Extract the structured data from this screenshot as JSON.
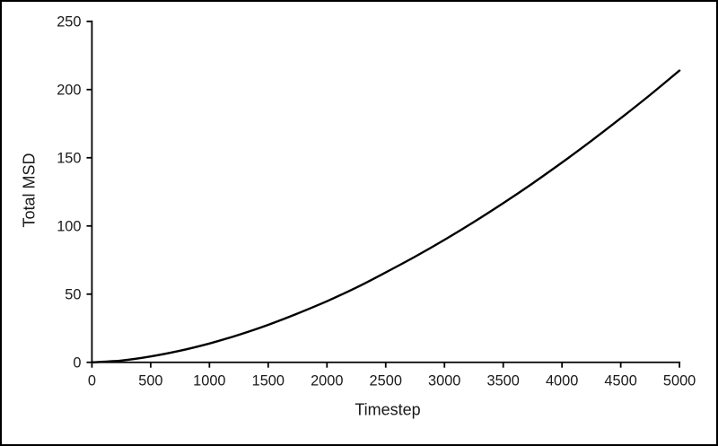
{
  "window": {
    "background": "#ffffff",
    "border_color": "#000000"
  },
  "chart_data": {
    "type": "line",
    "title": "",
    "xlabel": "Timestep",
    "ylabel": "Total MSD",
    "xlim": [
      0,
      5000
    ],
    "ylim": [
      0,
      250
    ],
    "x_ticks": [
      0,
      500,
      1000,
      1500,
      2000,
      2500,
      3000,
      3500,
      4000,
      4500,
      5000
    ],
    "y_ticks": [
      0,
      50,
      100,
      150,
      200,
      250
    ],
    "grid": false,
    "legend": "none",
    "line_color": "#000000",
    "axis_color": "#000000",
    "text_color": "#1a1a1a",
    "series": [
      {
        "name": "Total MSD",
        "x": [
          0,
          250,
          500,
          750,
          1000,
          1250,
          1500,
          1750,
          2000,
          2250,
          2500,
          2750,
          3000,
          3250,
          3500,
          3750,
          4000,
          4250,
          4500,
          4750,
          5000
        ],
        "y": [
          0,
          1.3,
          4.3,
          8.5,
          13.8,
          20.2,
          27.5,
          35.8,
          44.8,
          54.8,
          65.9,
          77.5,
          89.8,
          102.9,
          116.7,
          131.2,
          146.5,
          162.4,
          179.0,
          196.1,
          214.0
        ]
      }
    ]
  }
}
